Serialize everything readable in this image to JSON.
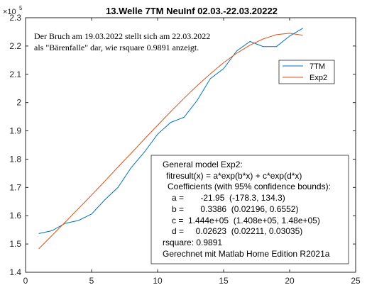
{
  "chart_data": {
    "type": "line",
    "title": "13.Welle 7TM NeuInf 02.03.-22.03.20222",
    "xlabel": "",
    "ylabel": "",
    "xlim": [
      0,
      25
    ],
    "ylim": [
      140000,
      230000
    ],
    "x_ticks": [
      "0",
      "5",
      "10",
      "15",
      "20",
      "25"
    ],
    "y_ticks": [
      "1.4",
      "1.5",
      "1.6",
      "1.7",
      "1.8",
      "1.9",
      "2",
      "2.1",
      "2.2",
      "2.3"
    ],
    "y_exponent": "×10^5",
    "grid": false,
    "legend_position": "top-right",
    "series": [
      {
        "name": "7TM",
        "color": "#0072BD",
        "x": [
          1,
          2,
          3,
          4,
          5,
          6,
          7,
          8,
          9,
          10,
          11,
          12,
          13,
          14,
          15,
          16,
          17,
          18,
          19,
          20,
          21
        ],
        "y": [
          153700,
          154700,
          157300,
          158300,
          160600,
          165600,
          170000,
          177000,
          182500,
          188800,
          193000,
          194800,
          200800,
          208500,
          212000,
          218300,
          221600,
          219800,
          219800,
          223500,
          226300
        ]
      },
      {
        "name": "Exp2",
        "color": "#D95319",
        "x": [
          1,
          2,
          3,
          4,
          5,
          6,
          7,
          8,
          9,
          10,
          11,
          12,
          13,
          14,
          15,
          16,
          17,
          18,
          19,
          20,
          21
        ],
        "y": [
          148300,
          153000,
          157700,
          162500,
          167300,
          172200,
          177200,
          182100,
          187100,
          192000,
          196800,
          201500,
          206000,
          210200,
          214100,
          217500,
          220300,
          222500,
          224000,
          224500,
          223800
        ]
      }
    ]
  },
  "annotation": {
    "line1": "Der Bruch am 19.03.2022 stellt sich am 22.03.2022",
    "line2": "als \"Bärenfalle\" dar, wie rsquare 0.9891 anzeigt."
  },
  "fit_box": {
    "lines": [
      "General model Exp2:",
      "fitresult(x) = a*exp(b*x) + c*exp(d*x)",
      "Coefficients (with 95% confidence bounds):",
      "a =       -21.95  (-178.3, 134.3)",
      "b =       0.3386  (0.02196, 0.6552)",
      "c =  1.444e+05  (1.408e+05, 1.48e+05)",
      "d =     0.02623  (0.02211, 0.03035)",
      "rsquare: 0.9891",
      "Gerechnet mit Matlab Home Edition R2021a"
    ]
  }
}
